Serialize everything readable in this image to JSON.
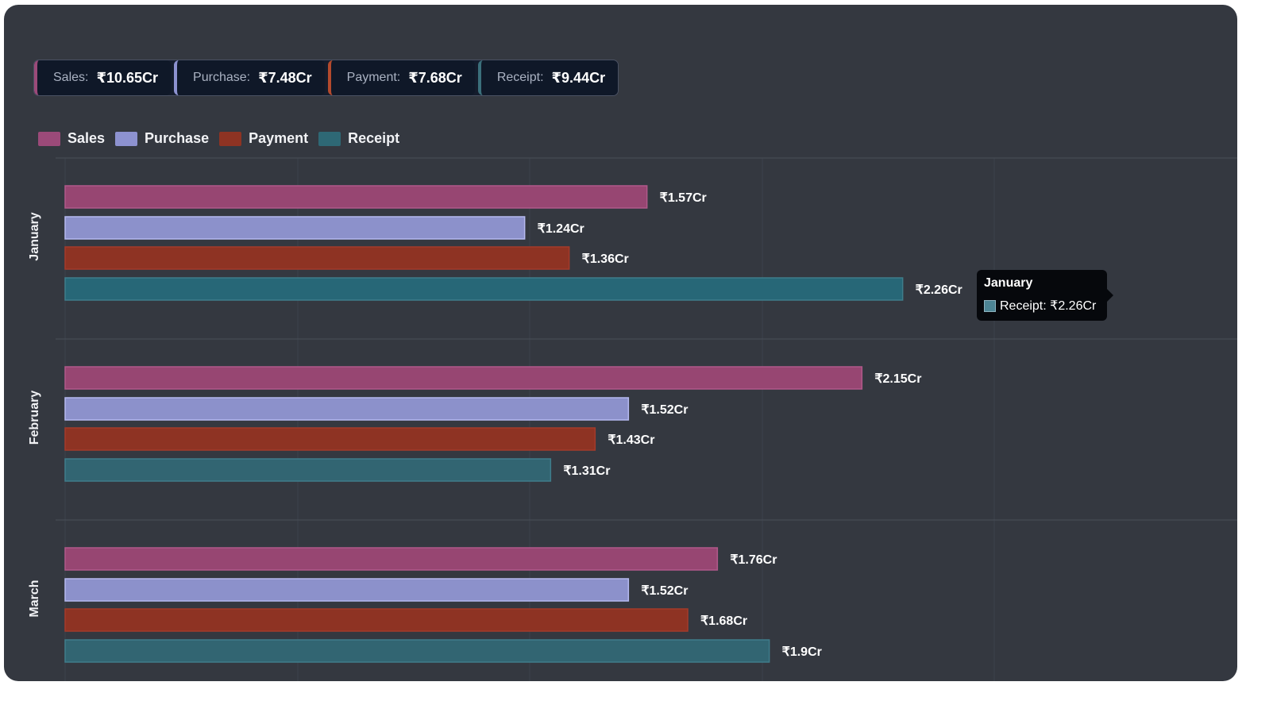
{
  "summary": [
    {
      "label": "Sales:",
      "value": "₹10.65Cr",
      "color": "#9b4a79"
    },
    {
      "label": "Purchase:",
      "value": "₹7.48Cr",
      "color": "#8d92d0"
    },
    {
      "label": "Payment:",
      "value": "₹7.68Cr",
      "color": "#b44a2d"
    },
    {
      "label": "Receipt:",
      "value": "₹9.44Cr",
      "color": "#3b6f7b"
    }
  ],
  "legend": [
    {
      "label": "Sales",
      "color": "#9b4a79"
    },
    {
      "label": "Purchase",
      "color": "#8d92d0"
    },
    {
      "label": "Payment",
      "color": "#8e3323"
    },
    {
      "label": "Receipt",
      "color": "#2e6875"
    }
  ],
  "tooltip": {
    "title": "January",
    "row": "Receipt: ₹2.26Cr"
  },
  "chart_data": {
    "type": "bar",
    "orientation": "horizontal",
    "categories": [
      "January",
      "February",
      "March"
    ],
    "series": [
      {
        "name": "Sales",
        "values": [
          1.57,
          2.15,
          1.76
        ],
        "labels": [
          "₹1.57Cr",
          "₹2.15Cr",
          "₹1.76Cr"
        ],
        "color": "#974672",
        "border": "#b0598a"
      },
      {
        "name": "Purchase",
        "values": [
          1.24,
          1.52,
          1.52
        ],
        "labels": [
          "₹1.24Cr",
          "₹1.52Cr",
          "₹1.52Cr"
        ],
        "color": "#8c91cb",
        "border": "#b5b9f0"
      },
      {
        "name": "Payment",
        "values": [
          1.36,
          1.43,
          1.68
        ],
        "labels": [
          "₹1.36Cr",
          "₹1.43Cr",
          "₹1.68Cr"
        ],
        "color": "#8e3323",
        "border": "#a33b2a"
      },
      {
        "name": "Receipt",
        "values": [
          2.26,
          1.31,
          1.9
        ],
        "labels": [
          "₹2.26Cr",
          "₹1.31Cr",
          "₹1.9Cr"
        ],
        "color": "#326572",
        "border": "#3f7d8b",
        "highlight_color": "#276777"
      }
    ],
    "xlim": [
      0,
      2.52
    ],
    "grid": true,
    "legend_position": "top-left"
  }
}
